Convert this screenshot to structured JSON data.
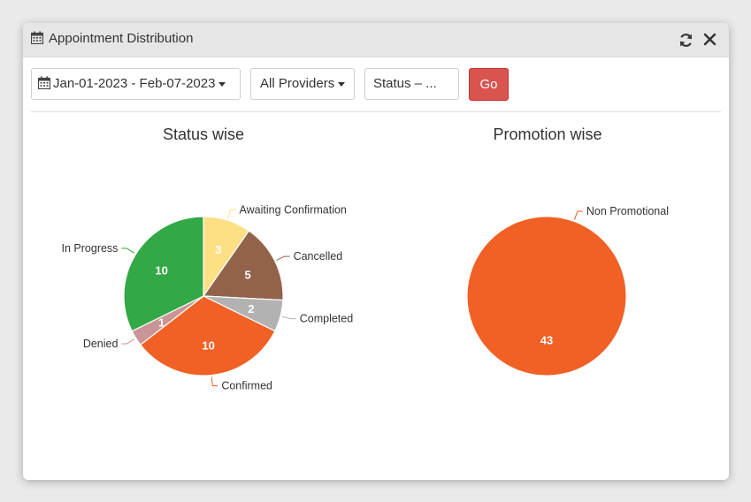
{
  "window": {
    "title": "Appointment Distribution",
    "icons": [
      "calendar-icon",
      "refresh-icon",
      "close-icon"
    ]
  },
  "filters": {
    "date_range": "Jan-01-2023 - Feb-07-2023",
    "providers": "All Providers",
    "status": "Status – ...",
    "go_label": "Go",
    "go_color": "#d9534f"
  },
  "chart_data": [
    {
      "type": "pie",
      "title": "Status wise",
      "slices": [
        {
          "label": "Awaiting Confirmation",
          "value": 3,
          "color": "#fddf84"
        },
        {
          "label": "Cancelled",
          "value": 5,
          "color": "#93624a"
        },
        {
          "label": "Completed",
          "value": 2,
          "color": "#b2b2b2"
        },
        {
          "label": "Confirmed",
          "value": 10,
          "color": "#f16024"
        },
        {
          "label": "Denied",
          "value": 1,
          "color": "#c99596"
        },
        {
          "label": "In Progress",
          "value": 10,
          "color": "#33a846"
        }
      ]
    },
    {
      "type": "pie",
      "title": "Promotion wise",
      "slices": [
        {
          "label": "Non Promotional",
          "value": 43,
          "color": "#f16024"
        }
      ]
    }
  ]
}
